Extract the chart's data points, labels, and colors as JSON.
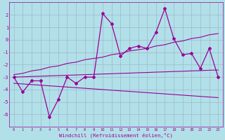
{
  "x": [
    0,
    1,
    2,
    3,
    4,
    5,
    6,
    7,
    8,
    9,
    10,
    11,
    12,
    13,
    14,
    15,
    16,
    17,
    18,
    19,
    20,
    21,
    22,
    23
  ],
  "main_line": [
    -3.0,
    -4.2,
    -3.3,
    -3.3,
    -6.2,
    -4.8,
    -3.0,
    -3.5,
    -3.0,
    -3.0,
    2.1,
    1.3,
    -1.3,
    -0.7,
    -0.5,
    -0.7,
    0.6,
    2.5,
    0.1,
    -1.2,
    -1.1,
    -2.3,
    -0.7,
    -3.0
  ],
  "upper_line": [
    -2.8,
    -2.7,
    -2.5,
    -2.4,
    -2.2,
    -2.1,
    -1.9,
    -1.8,
    -1.6,
    -1.5,
    -1.4,
    -1.2,
    -1.1,
    -0.9,
    -0.8,
    -0.7,
    -0.5,
    -0.4,
    -0.2,
    -0.1,
    0.1,
    0.2,
    0.4,
    0.5
  ],
  "mid_line": [
    -3.0,
    -2.98,
    -2.95,
    -2.93,
    -2.9,
    -2.88,
    -2.85,
    -2.83,
    -2.8,
    -2.78,
    -2.75,
    -2.73,
    -2.7,
    -2.68,
    -2.65,
    -2.63,
    -2.6,
    -2.58,
    -2.55,
    -2.53,
    -2.5,
    -2.48,
    -2.45,
    -2.43
  ],
  "lower_line": [
    -3.5,
    -3.55,
    -3.6,
    -3.65,
    -3.7,
    -3.75,
    -3.8,
    -3.85,
    -3.9,
    -3.95,
    -4.0,
    -4.05,
    -4.1,
    -4.15,
    -4.2,
    -4.25,
    -4.3,
    -4.35,
    -4.4,
    -4.45,
    -4.5,
    -4.55,
    -4.6,
    -4.65
  ],
  "bg_color": "#b2e0e8",
  "grid_color": "#9bb8cc",
  "line_color": "#990099",
  "xlabel": "Windchill (Refroidissement éolien,°C)",
  "ylim": [
    -7,
    3
  ],
  "xlim": [
    -0.5,
    23.5
  ],
  "yticks": [
    2,
    1,
    0,
    -1,
    -2,
    -3,
    -4,
    -5,
    -6
  ],
  "xticks": [
    0,
    1,
    2,
    3,
    4,
    5,
    6,
    7,
    8,
    9,
    10,
    11,
    12,
    13,
    14,
    15,
    16,
    17,
    18,
    19,
    20,
    21,
    22,
    23
  ]
}
